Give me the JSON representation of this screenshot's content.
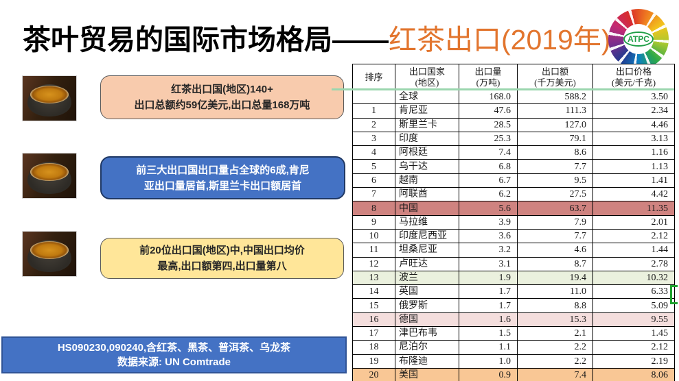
{
  "title": {
    "black_part": "茶叶贸易的国际市场格局——",
    "orange_part": "红茶出口(2019年)",
    "orange_color": "#E2752E"
  },
  "logo": {
    "text": "ATPC"
  },
  "callouts": [
    {
      "lines": [
        "红茶出口国(地区)140+",
        "出口总额约59亿美元,出口总量168万吨"
      ],
      "bg": "#F8CBAD"
    },
    {
      "lines": [
        "前三大出口国出口量占全球的6成,肯尼",
        "亚出口量居首,斯里兰卡出口额居首"
      ],
      "bg": "#4472C4"
    },
    {
      "lines": [
        "前20位出口国(地区)中,中国出口均价",
        "最高,出口额第四,出口量第八"
      ],
      "bg": "#FFE699"
    }
  ],
  "footer": {
    "lines": [
      "HS090230,090240,含红茶、黑茶、普洱茶、乌龙茶",
      "数据来源: UN Comtrade"
    ],
    "bg": "#4472C4"
  },
  "table": {
    "headers": [
      [
        "排序",
        ""
      ],
      [
        "出口国家",
        "(地区)"
      ],
      [
        "出口量",
        "(万吨)"
      ],
      [
        "出口额",
        "(千万美元)"
      ],
      [
        "出口价格",
        "(美元/千克)"
      ]
    ],
    "highlight_colors": {
      "china": "#CF8380",
      "poland": "#EBF1DE",
      "germany": "#F4DEDD",
      "usa": "#F9C795"
    },
    "rows": [
      {
        "rank": "",
        "country": "全球",
        "qty": "168.0",
        "amount": "588.2",
        "price": "3.50",
        "hl": ""
      },
      {
        "rank": "1",
        "country": "肯尼亚",
        "qty": "47.6",
        "amount": "111.3",
        "price": "2.34",
        "hl": ""
      },
      {
        "rank": "2",
        "country": "斯里兰卡",
        "qty": "28.5",
        "amount": "127.0",
        "price": "4.46",
        "hl": ""
      },
      {
        "rank": "3",
        "country": "印度",
        "qty": "25.3",
        "amount": "79.1",
        "price": "3.13",
        "hl": ""
      },
      {
        "rank": "4",
        "country": "阿根廷",
        "qty": "7.4",
        "amount": "8.6",
        "price": "1.16",
        "hl": ""
      },
      {
        "rank": "5",
        "country": "乌干达",
        "qty": "6.8",
        "amount": "7.7",
        "price": "1.13",
        "hl": ""
      },
      {
        "rank": "6",
        "country": "越南",
        "qty": "6.7",
        "amount": "9.5",
        "price": "1.41",
        "hl": ""
      },
      {
        "rank": "7",
        "country": "阿联酋",
        "qty": "6.2",
        "amount": "27.5",
        "price": "4.42",
        "hl": ""
      },
      {
        "rank": "8",
        "country": "中国",
        "qty": "5.6",
        "amount": "63.7",
        "price": "11.35",
        "hl": "china"
      },
      {
        "rank": "9",
        "country": "马拉维",
        "qty": "3.9",
        "amount": "7.9",
        "price": "2.01",
        "hl": ""
      },
      {
        "rank": "10",
        "country": "印度尼西亚",
        "qty": "3.6",
        "amount": "7.7",
        "price": "2.12",
        "hl": ""
      },
      {
        "rank": "11",
        "country": "坦桑尼亚",
        "qty": "3.2",
        "amount": "4.6",
        "price": "1.44",
        "hl": ""
      },
      {
        "rank": "12",
        "country": "卢旺达",
        "qty": "3.1",
        "amount": "8.7",
        "price": "2.78",
        "hl": ""
      },
      {
        "rank": "13",
        "country": "波兰",
        "qty": "1.9",
        "amount": "19.4",
        "price": "10.32",
        "hl": "poland"
      },
      {
        "rank": "14",
        "country": "英国",
        "qty": "1.7",
        "amount": "11.0",
        "price": "6.33",
        "hl": ""
      },
      {
        "rank": "15",
        "country": "俄罗斯",
        "qty": "1.7",
        "amount": "8.8",
        "price": "5.09",
        "hl": ""
      },
      {
        "rank": "16",
        "country": "德国",
        "qty": "1.6",
        "amount": "15.3",
        "price": "9.55",
        "hl": "germany"
      },
      {
        "rank": "17",
        "country": "津巴布韦",
        "qty": "1.5",
        "amount": "2.1",
        "price": "1.45",
        "hl": ""
      },
      {
        "rank": "18",
        "country": "尼泊尔",
        "qty": "1.1",
        "amount": "2.2",
        "price": "2.12",
        "hl": ""
      },
      {
        "rank": "19",
        "country": "布隆迪",
        "qty": "1.0",
        "amount": "2.2",
        "price": "2.19",
        "hl": ""
      },
      {
        "rank": "20",
        "country": "美国",
        "qty": "0.9",
        "amount": "7.4",
        "price": "8.06",
        "hl": "usa"
      }
    ]
  },
  "annotations": {
    "green_line_color": "#9BD6AE",
    "bracket_color": "#1FA32F"
  }
}
